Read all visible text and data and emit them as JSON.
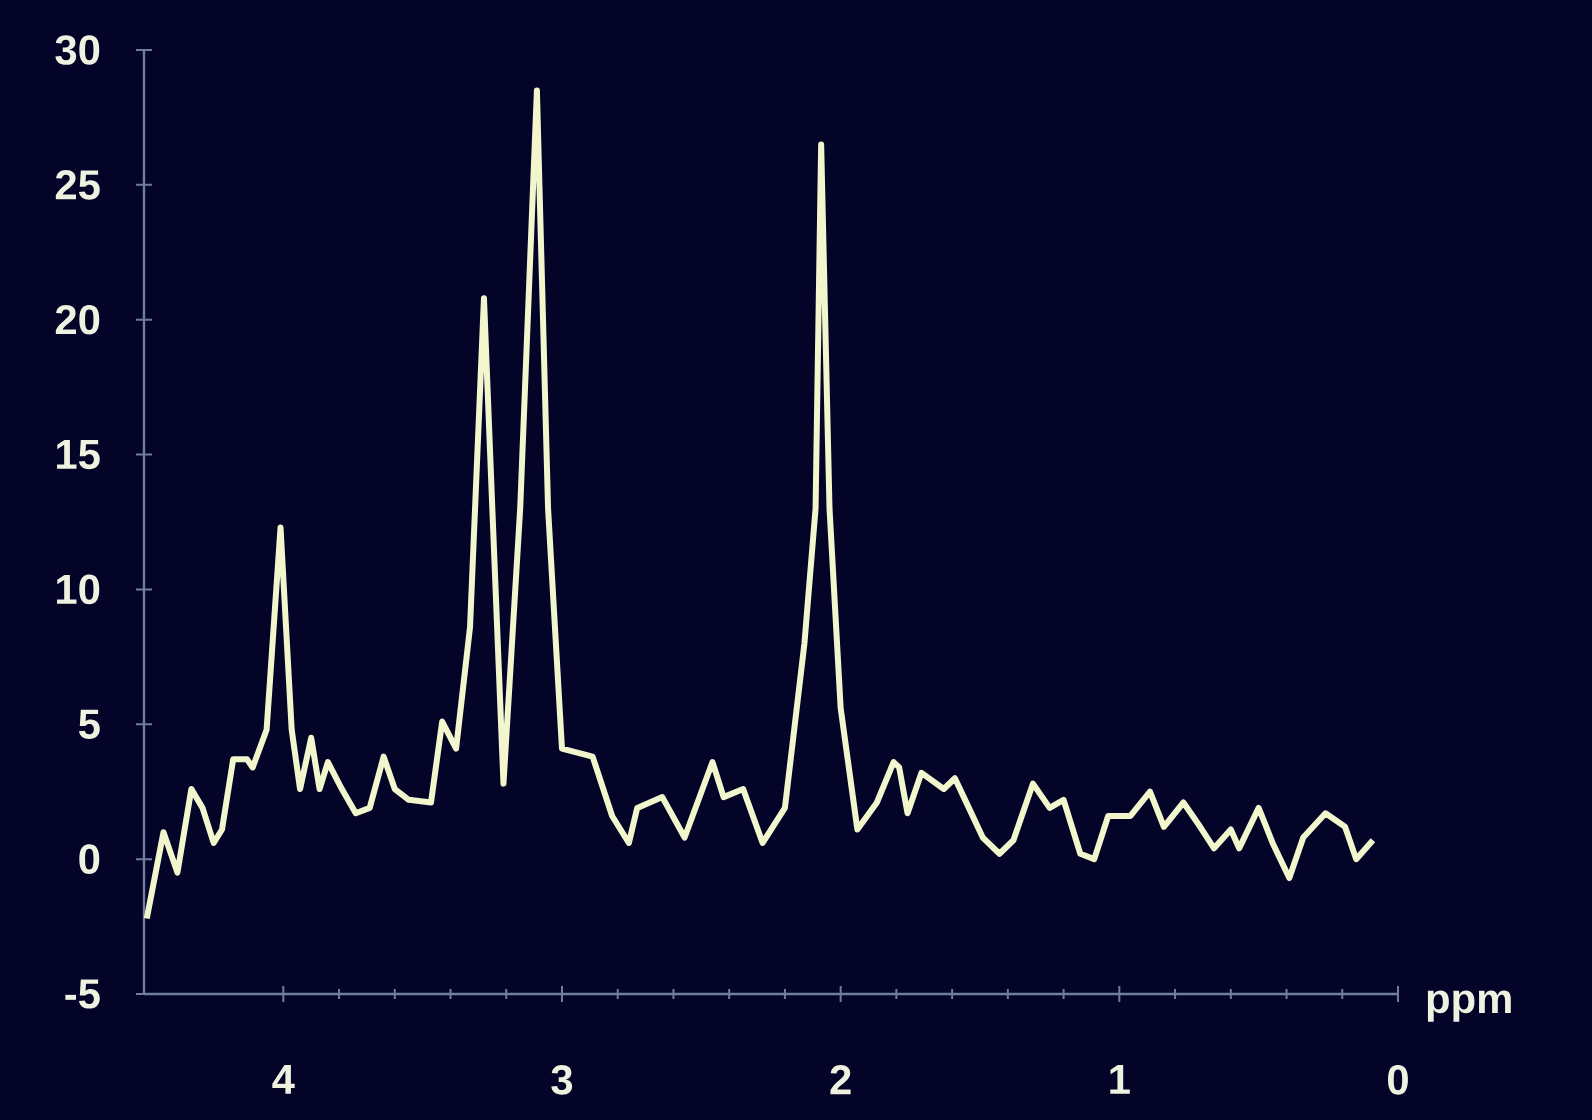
{
  "chart_data": {
    "type": "line",
    "xlabel": "ppm",
    "color": "#f2f6cc",
    "x": [
      4.49,
      4.43,
      4.38,
      4.33,
      4.29,
      4.25,
      4.22,
      4.18,
      4.13,
      4.11,
      4.06,
      4.01,
      3.97,
      3.94,
      3.9,
      3.87,
      3.84,
      3.79,
      3.74,
      3.69,
      3.64,
      3.6,
      3.55,
      3.47,
      3.43,
      3.38,
      3.33,
      3.28,
      3.25,
      3.21,
      3.15,
      3.09,
      3.05,
      3.0,
      2.89,
      2.82,
      2.76,
      2.73,
      2.64,
      2.56,
      2.46,
      2.42,
      2.35,
      2.28,
      2.2,
      2.13,
      2.09,
      2.07,
      2.04,
      2.0,
      1.94,
      1.87,
      1.81,
      1.79,
      1.76,
      1.71,
      1.63,
      1.59,
      1.54,
      1.49,
      1.43,
      1.38,
      1.31,
      1.25,
      1.2,
      1.14,
      1.09,
      1.04,
      0.96,
      0.89,
      0.84,
      0.77,
      0.71,
      0.66,
      0.6,
      0.57,
      0.5,
      0.45,
      0.39,
      0.34,
      0.26,
      0.19,
      0.15,
      0.09
    ],
    "values": [
      -2.2,
      1.0,
      -0.5,
      2.6,
      1.9,
      0.6,
      1.1,
      3.7,
      3.7,
      3.4,
      4.8,
      12.3,
      4.8,
      2.6,
      4.5,
      2.6,
      3.6,
      2.6,
      1.7,
      1.9,
      3.8,
      2.6,
      2.2,
      2.1,
      5.1,
      4.1,
      8.6,
      20.8,
      13.0,
      2.8,
      13.0,
      28.5,
      13.0,
      4.1,
      3.8,
      1.6,
      0.6,
      1.9,
      2.3,
      0.8,
      3.6,
      2.3,
      2.6,
      0.6,
      1.9,
      8.0,
      13.0,
      26.5,
      13.0,
      5.6,
      1.1,
      2.1,
      3.6,
      3.4,
      1.7,
      3.2,
      2.6,
      3.0,
      1.9,
      0.8,
      0.2,
      0.7,
      2.8,
      1.9,
      2.2,
      0.2,
      0.0,
      1.6,
      1.6,
      2.5,
      1.2,
      2.1,
      1.2,
      0.4,
      1.1,
      0.4,
      1.9,
      0.6,
      -0.7,
      0.8,
      1.7,
      1.2,
      0.0,
      0.7
    ],
    "xlim": [
      4.5,
      0
    ],
    "ylim": [
      -5,
      30
    ],
    "xticks": [
      4,
      3,
      2,
      1,
      0
    ],
    "yticks": [
      -5,
      0,
      5,
      10,
      15,
      20,
      25,
      30
    ]
  }
}
